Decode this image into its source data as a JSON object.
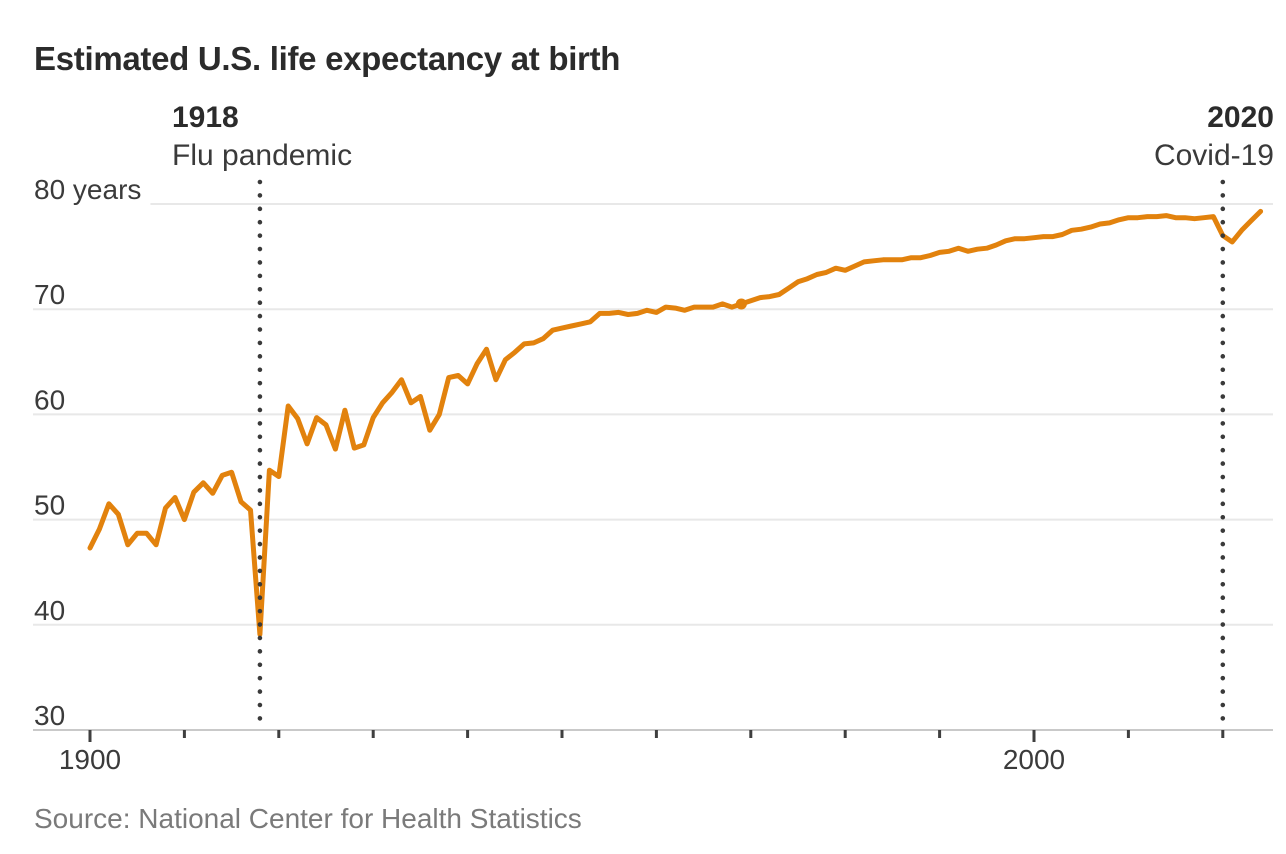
{
  "title": "Estimated U.S. life expectancy at birth",
  "source": "Source: National Center for Health Statistics",
  "annotations": [
    {
      "year": "1918",
      "label": "Flu pandemic"
    },
    {
      "year": "2020",
      "label": "Covid-19"
    }
  ],
  "colors": {
    "line": "#E2820D",
    "gridline": "#E8E8E8",
    "axis": "#C9C9C9",
    "tick": "#3F3F3F",
    "dotted_line": "#3A3A3A",
    "axis_label": "#3B3B3B",
    "title_text": "#2B2B2B",
    "source_text": "#7A7A7A"
  },
  "chart_data": {
    "type": "line",
    "title": "Estimated U.S. life expectancy at birth",
    "xlabel": "",
    "ylabel": "years",
    "ylim": [
      30,
      80
    ],
    "xlim": [
      1900,
      2024
    ],
    "grid": "horizontal",
    "legend": "none",
    "y_ticks": [
      {
        "value": 80,
        "label": "80 years"
      },
      {
        "value": 70,
        "label": "70"
      },
      {
        "value": 60,
        "label": "60"
      },
      {
        "value": 50,
        "label": "50"
      },
      {
        "value": 40,
        "label": "40"
      },
      {
        "value": 30,
        "label": "30"
      }
    ],
    "x_ticks": [
      {
        "year": 1900,
        "label": "1900"
      },
      {
        "year": 1910,
        "label": ""
      },
      {
        "year": 1920,
        "label": ""
      },
      {
        "year": 1930,
        "label": ""
      },
      {
        "year": 1940,
        "label": ""
      },
      {
        "year": 1950,
        "label": ""
      },
      {
        "year": 1960,
        "label": ""
      },
      {
        "year": 1970,
        "label": ""
      },
      {
        "year": 1980,
        "label": ""
      },
      {
        "year": 1990,
        "label": ""
      },
      {
        "year": 2000,
        "label": "2000"
      },
      {
        "year": 2010,
        "label": ""
      },
      {
        "year": 2020,
        "label": ""
      }
    ],
    "events": [
      {
        "year": 1918,
        "title": "1918",
        "label": "Flu pandemic"
      },
      {
        "year": 2020,
        "title": "2020",
        "label": "Covid-19"
      }
    ],
    "highlight_point": {
      "year": 1969,
      "value": 70.5
    },
    "series": [
      {
        "name": "U.S. life expectancy at birth",
        "points": [
          [
            1900,
            47.3
          ],
          [
            1901,
            49.1
          ],
          [
            1902,
            51.5
          ],
          [
            1903,
            50.5
          ],
          [
            1904,
            47.6
          ],
          [
            1905,
            48.7
          ],
          [
            1906,
            48.7
          ],
          [
            1907,
            47.6
          ],
          [
            1908,
            51.1
          ],
          [
            1909,
            52.1
          ],
          [
            1910,
            50.0
          ],
          [
            1911,
            52.6
          ],
          [
            1912,
            53.5
          ],
          [
            1913,
            52.5
          ],
          [
            1914,
            54.2
          ],
          [
            1915,
            54.5
          ],
          [
            1916,
            51.7
          ],
          [
            1917,
            50.9
          ],
          [
            1918,
            39.1
          ],
          [
            1919,
            54.7
          ],
          [
            1920,
            54.1
          ],
          [
            1921,
            60.8
          ],
          [
            1922,
            59.6
          ],
          [
            1923,
            57.2
          ],
          [
            1924,
            59.7
          ],
          [
            1925,
            59.0
          ],
          [
            1926,
            56.7
          ],
          [
            1927,
            60.4
          ],
          [
            1928,
            56.8
          ],
          [
            1929,
            57.1
          ],
          [
            1930,
            59.7
          ],
          [
            1931,
            61.1
          ],
          [
            1932,
            62.1
          ],
          [
            1933,
            63.3
          ],
          [
            1934,
            61.1
          ],
          [
            1935,
            61.7
          ],
          [
            1936,
            58.5
          ],
          [
            1937,
            60.0
          ],
          [
            1938,
            63.5
          ],
          [
            1939,
            63.7
          ],
          [
            1940,
            62.9
          ],
          [
            1941,
            64.8
          ],
          [
            1942,
            66.2
          ],
          [
            1943,
            63.3
          ],
          [
            1944,
            65.2
          ],
          [
            1945,
            65.9
          ],
          [
            1946,
            66.7
          ],
          [
            1947,
            66.8
          ],
          [
            1948,
            67.2
          ],
          [
            1949,
            68.0
          ],
          [
            1950,
            68.2
          ],
          [
            1951,
            68.4
          ],
          [
            1952,
            68.6
          ],
          [
            1953,
            68.8
          ],
          [
            1954,
            69.6
          ],
          [
            1955,
            69.6
          ],
          [
            1956,
            69.7
          ],
          [
            1957,
            69.5
          ],
          [
            1958,
            69.6
          ],
          [
            1959,
            69.9
          ],
          [
            1960,
            69.7
          ],
          [
            1961,
            70.2
          ],
          [
            1962,
            70.1
          ],
          [
            1963,
            69.9
          ],
          [
            1964,
            70.2
          ],
          [
            1965,
            70.2
          ],
          [
            1966,
            70.2
          ],
          [
            1967,
            70.5
          ],
          [
            1968,
            70.2
          ],
          [
            1969,
            70.5
          ],
          [
            1970,
            70.8
          ],
          [
            1971,
            71.1
          ],
          [
            1972,
            71.2
          ],
          [
            1973,
            71.4
          ],
          [
            1974,
            72.0
          ],
          [
            1975,
            72.6
          ],
          [
            1976,
            72.9
          ],
          [
            1977,
            73.3
          ],
          [
            1978,
            73.5
          ],
          [
            1979,
            73.9
          ],
          [
            1980,
            73.7
          ],
          [
            1981,
            74.1
          ],
          [
            1982,
            74.5
          ],
          [
            1983,
            74.6
          ],
          [
            1984,
            74.7
          ],
          [
            1985,
            74.7
          ],
          [
            1986,
            74.7
          ],
          [
            1987,
            74.9
          ],
          [
            1988,
            74.9
          ],
          [
            1989,
            75.1
          ],
          [
            1990,
            75.4
          ],
          [
            1991,
            75.5
          ],
          [
            1992,
            75.8
          ],
          [
            1993,
            75.5
          ],
          [
            1994,
            75.7
          ],
          [
            1995,
            75.8
          ],
          [
            1996,
            76.1
          ],
          [
            1997,
            76.5
          ],
          [
            1998,
            76.7
          ],
          [
            1999,
            76.7
          ],
          [
            2000,
            76.8
          ],
          [
            2001,
            76.9
          ],
          [
            2002,
            76.9
          ],
          [
            2003,
            77.1
          ],
          [
            2004,
            77.5
          ],
          [
            2005,
            77.6
          ],
          [
            2006,
            77.8
          ],
          [
            2007,
            78.1
          ],
          [
            2008,
            78.2
          ],
          [
            2009,
            78.5
          ],
          [
            2010,
            78.7
          ],
          [
            2011,
            78.7
          ],
          [
            2012,
            78.8
          ],
          [
            2013,
            78.8
          ],
          [
            2014,
            78.9
          ],
          [
            2015,
            78.7
          ],
          [
            2016,
            78.7
          ],
          [
            2017,
            78.6
          ],
          [
            2018,
            78.7
          ],
          [
            2019,
            78.8
          ],
          [
            2020,
            77.0
          ],
          [
            2021,
            76.4
          ],
          [
            2022,
            77.5
          ],
          [
            2023,
            78.4
          ],
          [
            2024,
            79.3
          ]
        ]
      }
    ]
  }
}
